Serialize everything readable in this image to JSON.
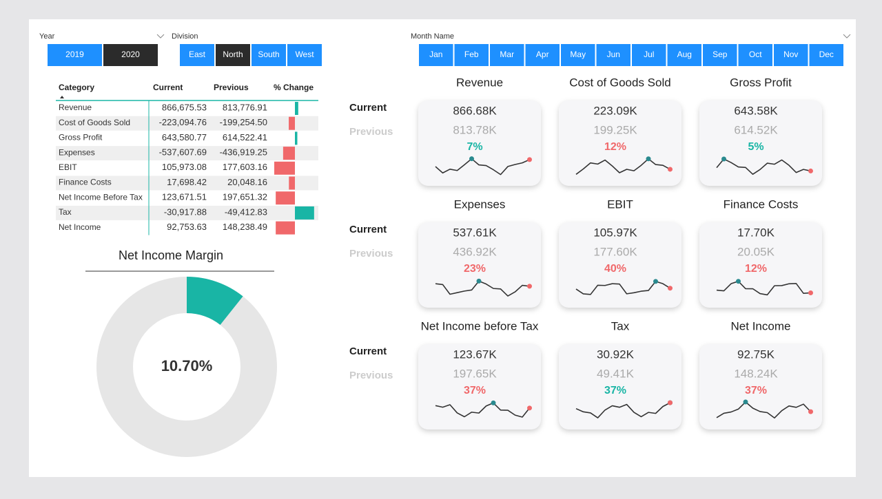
{
  "slicers": {
    "year": {
      "label": "Year",
      "options": [
        "2019",
        "2020"
      ],
      "selected": 1
    },
    "division": {
      "label": "Division",
      "options": [
        "East",
        "North",
        "South",
        "West"
      ],
      "selected": 1
    },
    "month": {
      "label": "Month Name",
      "options": [
        "Jan",
        "Feb",
        "Mar",
        "Apr",
        "May",
        "Jun",
        "Jul",
        "Aug",
        "Sep",
        "Oct",
        "Nov",
        "Dec"
      ]
    }
  },
  "table": {
    "columns": [
      "Category",
      "Current",
      "Previous",
      "% Change"
    ],
    "rows": [
      [
        "Revenue",
        "866,675.53",
        "813,776.91"
      ],
      [
        "Cost of Goods Sold",
        "-223,094.76",
        "-199,254.50"
      ],
      [
        "Gross Profit",
        "643,580.77",
        "614,522.41"
      ],
      [
        "Expenses",
        "-537,607.69",
        "-436,919.25"
      ],
      [
        "EBIT",
        "105,973.08",
        "177,603.16"
      ],
      [
        "Finance Costs",
        "17,698.42",
        "20,048.16"
      ],
      [
        "Net Income Before Tax",
        "123,671.51",
        "197,651.32"
      ],
      [
        "Tax",
        "-30,917.88",
        "-49,412.83"
      ],
      [
        "Net Income",
        "92,753.63",
        "148,238.49"
      ]
    ],
    "change": [
      6.5,
      -12.0,
      4.7,
      -23.0,
      -40.3,
      -11.7,
      -37.4,
      37.4,
      -37.4
    ],
    "change_lim": 40.3,
    "colors": {
      "positive": "#19b5a5",
      "negative": "#f0686a"
    }
  },
  "donut": {
    "title": "Net Income Margin",
    "value": 10.7,
    "value_label": "10.70%",
    "max": 100,
    "color": "#19b5a5",
    "track": "#e6e6e6"
  },
  "row_labels": {
    "current": "Current",
    "previous": "Previous"
  },
  "cards": [
    {
      "title": "Revenue",
      "current": "866.68K",
      "previous": "813.78K",
      "change": "7%",
      "color": "#19b5a5"
    },
    {
      "title": "Cost of Goods Sold",
      "current": "223.09K",
      "previous": "199.25K",
      "change": "12%",
      "color": "#f0686a"
    },
    {
      "title": "Gross Profit",
      "current": "643.58K",
      "previous": "614.52K",
      "change": "5%",
      "color": "#19b5a5"
    },
    {
      "title": "Expenses",
      "current": "537.61K",
      "previous": "436.92K",
      "change": "23%",
      "color": "#f0686a"
    },
    {
      "title": "EBIT",
      "current": "105.97K",
      "previous": "177.60K",
      "change": "40%",
      "color": "#f0686a"
    },
    {
      "title": "Finance Costs",
      "current": "17.70K",
      "previous": "20.05K",
      "change": "12%",
      "color": "#f0686a"
    },
    {
      "title": "Net Income before Tax",
      "current": "123.67K",
      "previous": "197.65K",
      "change": "37%",
      "color": "#f0686a"
    },
    {
      "title": "Tax",
      "current": "30.92K",
      "previous": "49.41K",
      "change": "37%",
      "color": "#19b5a5"
    },
    {
      "title": "Net Income",
      "current": "92.75K",
      "previous": "148.24K",
      "change": "37%",
      "color": "#f0686a"
    }
  ]
}
